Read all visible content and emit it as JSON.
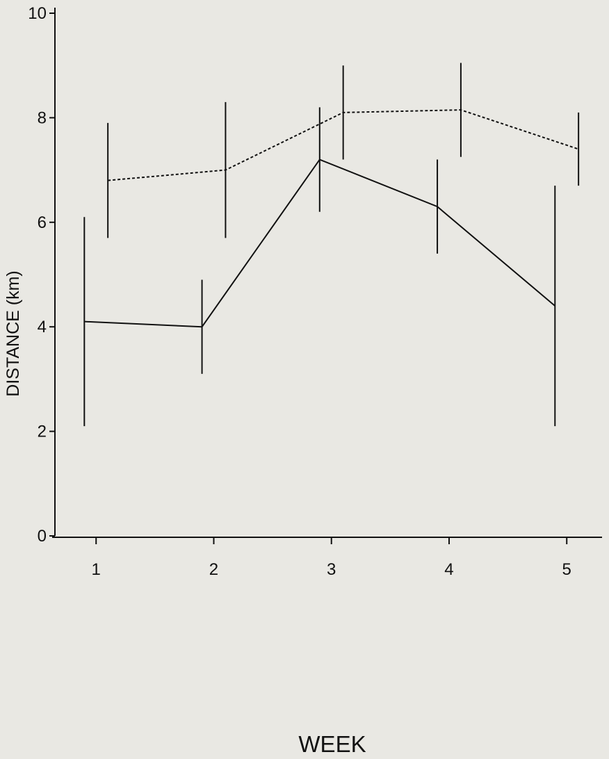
{
  "chart_data": {
    "type": "line",
    "title": "",
    "xlabel": "WEEK",
    "ylabel": "DISTANCE (km)",
    "xlim": [
      0.65,
      5.3
    ],
    "ylim": [
      0,
      10
    ],
    "x_ticks": [
      1,
      2,
      3,
      4,
      5
    ],
    "y_ticks": [
      0,
      2,
      4,
      6,
      8,
      10
    ],
    "grid": false,
    "legend": "none",
    "series": [
      {
        "line_style": "solid",
        "color": "#111111",
        "points": [
          {
            "x": 0.9,
            "y": 4.1,
            "low": 2.1,
            "high": 6.1
          },
          {
            "x": 1.9,
            "y": 4.0,
            "low": 3.1,
            "high": 4.9
          },
          {
            "x": 2.9,
            "y": 7.2,
            "low": 6.2,
            "high": 8.2
          },
          {
            "x": 3.9,
            "y": 6.3,
            "low": 5.4,
            "high": 7.2
          },
          {
            "x": 4.9,
            "y": 4.4,
            "low": 2.1,
            "high": 6.7
          }
        ]
      },
      {
        "line_style": "dashed",
        "color": "#111111",
        "points": [
          {
            "x": 1.1,
            "y": 6.8,
            "low": 5.7,
            "high": 7.9
          },
          {
            "x": 2.1,
            "y": 7.0,
            "low": 5.7,
            "high": 8.3
          },
          {
            "x": 3.1,
            "y": 8.1,
            "low": 7.2,
            "high": 9.0
          },
          {
            "x": 4.1,
            "y": 8.15,
            "low": 7.25,
            "high": 9.05
          },
          {
            "x": 5.1,
            "y": 7.4,
            "low": 6.7,
            "high": 8.1
          }
        ]
      }
    ]
  }
}
